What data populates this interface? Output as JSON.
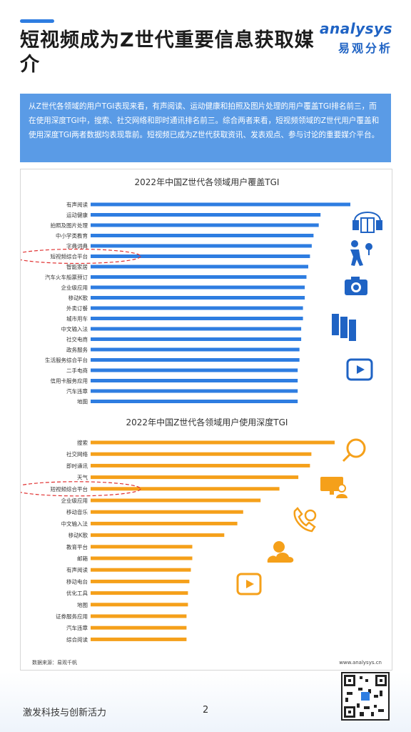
{
  "header": {
    "title": "短视频成为Z世代重要信息获取媒介",
    "logo_en": "analysys",
    "logo_cn": "易观分析"
  },
  "summary": "从Z世代各领域的用户TGI表现来看，有声阅读、运动健康和拍照及图片处理的用户覆盖TGI排名前三，而在使用深度TGI中，搜索、社交网络和即时通讯排名前三。综合两者来看，短视频领域的Z世代用户覆盖和使用深度TGI两者数据均表现靠前。短视频已成为Z世代获取资讯、发表观点、参与讨论的重要媒介平台。",
  "chart_data": [
    {
      "type": "bar",
      "orientation": "horizontal",
      "title": "2022年中国Z世代各领域用户覆盖TGI",
      "color": "#2e7de1",
      "highlight": "短视频综合平台",
      "categories": [
        "有声阅读",
        "运动健康",
        "拍照及图片处理",
        "中小学类教育",
        "字典词典",
        "短视频综合平台",
        "智能家居",
        "汽车火车船票预订",
        "企业级应用",
        "移动K歌",
        "外卖订餐",
        "城市用车",
        "中文输入法",
        "社交电商",
        "政务服务",
        "生活服务综合平台",
        "二手电商",
        "信用卡服务应用",
        "汽车违章",
        "地图"
      ],
      "values": [
        148,
        131,
        130,
        127,
        126,
        125,
        124,
        123,
        122,
        122,
        121,
        121,
        120,
        120,
        119,
        119,
        118,
        118,
        118,
        118
      ]
    },
    {
      "type": "bar",
      "orientation": "horizontal",
      "title": "2022年中国Z世代各领域用户使用深度TGI",
      "color": "#f5a01a",
      "highlight": "短视频综合平台",
      "categories": [
        "搜索",
        "社交网络",
        "即时通讯",
        "天气",
        "短视频综合平台",
        "企业级应用",
        "移动音乐",
        "中文输入法",
        "移动K歌",
        "教育平台",
        "邮箱",
        "有声阅读",
        "移动电台",
        "优化工具",
        "地图",
        "证券服务应用",
        "汽车违章",
        "综合阅读"
      ],
      "values": [
        168,
        152,
        151,
        143,
        130,
        117,
        105,
        101,
        92,
        70,
        70,
        69,
        68,
        67,
        67,
        66,
        66,
        66
      ]
    }
  ],
  "source": "数据来源：易观千帆",
  "site": "www.analysys.cn",
  "footer": {
    "slogan": "激发科技与创新活力",
    "page": "2"
  }
}
